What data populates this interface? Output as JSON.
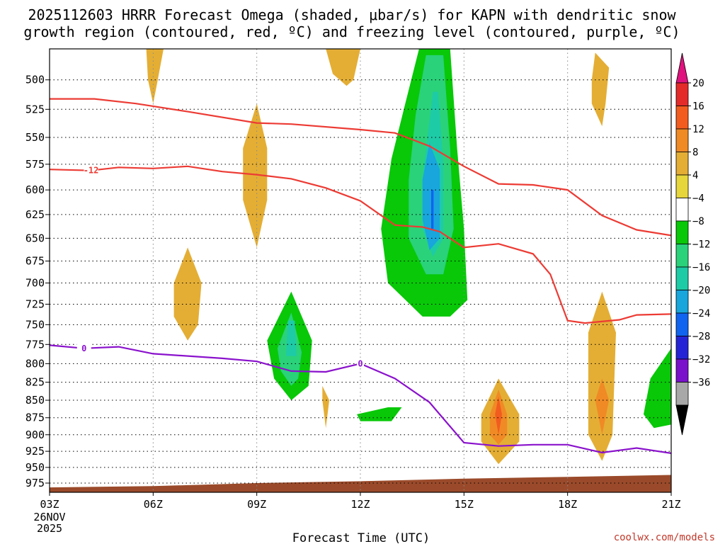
{
  "chart_data": {
    "type": "time-height cross section",
    "title_line1": "2025112603 HRRR Forecast Omega (shaded, μbar/s) for KAPN with dendritic snow",
    "title_line2": "growth region (contoured, red, ºC) and freezing level (contoured, purple, ºC)",
    "xlabel": "Forecast Time (UTC)",
    "x_ticks": [
      "03Z",
      "06Z",
      "09Z",
      "12Z",
      "15Z",
      "18Z",
      "21Z"
    ],
    "x_tick_hours": [
      3,
      6,
      9,
      12,
      15,
      18,
      21
    ],
    "x_start_extra": [
      "26NOV",
      "2025"
    ],
    "xlim": [
      3,
      21
    ],
    "y_levels": [
      500,
      525,
      550,
      575,
      600,
      625,
      650,
      675,
      700,
      725,
      750,
      775,
      800,
      825,
      850,
      875,
      900,
      925,
      950,
      975
    ],
    "ylim": [
      475,
      990
    ],
    "y_scale": "log-pressure (hPa)",
    "colorbar": {
      "labels": [
        "20",
        "16",
        "12",
        "8",
        "4",
        "−4",
        "−8",
        "−12",
        "−16",
        "−20",
        "−24",
        "−28",
        "−32",
        "−36"
      ],
      "boundaries": [
        20,
        16,
        12,
        8,
        4,
        -4,
        -8,
        -12,
        -16,
        -20,
        -24,
        -28,
        -32,
        -36
      ],
      "colors": [
        "#e52a2a",
        "#f25c1f",
        "#f08a25",
        "#e4ae35",
        "#e6d63c",
        "#ffffff",
        "#08c808",
        "#2ad27a",
        "#1ecba7",
        "#18a6dd",
        "#1064f0",
        "#2424d6",
        "#7a12cc",
        "#a8a8a8"
      ],
      "top_arrow_color": "#e0127e",
      "bottom_arrow_color": "#000000"
    },
    "dgz_contours": {
      "color": "#ec3b34",
      "series": [
        {
          "name": "-18",
          "label": "",
          "points": [
            [
              3.0,
              516
            ],
            [
              4.3,
              516
            ],
            [
              5.5,
              520
            ],
            [
              7.0,
              527
            ],
            [
              9.0,
              537
            ],
            [
              10.0,
              538
            ],
            [
              12.0,
              543
            ],
            [
              13.0,
              546
            ],
            [
              14.0,
              558
            ],
            [
              15.0,
              577
            ],
            [
              16.0,
              594
            ],
            [
              17.0,
              595
            ],
            [
              18.0,
              600
            ],
            [
              19.0,
              626
            ],
            [
              20.0,
              641
            ],
            [
              21.0,
              647
            ]
          ]
        },
        {
          "name": "-12",
          "label": "-12",
          "points": [
            [
              3.0,
              580
            ],
            [
              4.2,
              581
            ],
            [
              5.0,
              578
            ],
            [
              6.0,
              579
            ],
            [
              7.0,
              577
            ],
            [
              8.0,
              582
            ],
            [
              9.0,
              585
            ],
            [
              10.0,
              589
            ],
            [
              11.0,
              598
            ],
            [
              12.0,
              611
            ],
            [
              13.0,
              636
            ],
            [
              13.8,
              638
            ],
            [
              14.3,
              643
            ],
            [
              15.0,
              660
            ],
            [
              16.0,
              656
            ],
            [
              17.0,
              667
            ],
            [
              17.5,
              690
            ],
            [
              18.0,
              745
            ],
            [
              18.5,
              748
            ],
            [
              19.5,
              744
            ],
            [
              20.0,
              738
            ],
            [
              21.0,
              737
            ]
          ]
        }
      ]
    },
    "freezing_level": {
      "color": "#8a12cc",
      "label": "0",
      "points": [
        [
          3.0,
          776
        ],
        [
          4.0,
          780
        ],
        [
          5.0,
          778
        ],
        [
          6.0,
          787
        ],
        [
          8.0,
          793
        ],
        [
          9.0,
          797
        ],
        [
          10.0,
          810
        ],
        [
          11.0,
          811
        ],
        [
          12.0,
          800
        ],
        [
          13.0,
          820
        ],
        [
          14.0,
          853
        ],
        [
          15.0,
          912
        ],
        [
          16.0,
          917
        ],
        [
          17.0,
          915
        ],
        [
          18.0,
          915
        ],
        [
          19.0,
          927
        ],
        [
          20.0,
          920
        ],
        [
          21.0,
          928
        ]
      ]
    },
    "shaded_regions": [
      {
        "omega": -6,
        "points": [
          [
            14.0,
            475
          ],
          [
            15.0,
            475
          ],
          [
            15.5,
            540
          ],
          [
            15.5,
            680
          ],
          [
            15.0,
            775
          ],
          [
            14.5,
            820
          ],
          [
            14.0,
            860
          ],
          [
            13.0,
            900
          ],
          [
            12.0,
            950
          ],
          [
            10.8,
            950
          ],
          [
            10.8,
            930
          ],
          [
            12.0,
            900
          ],
          [
            11.5,
            860
          ],
          [
            11.5,
            800
          ],
          [
            12.0,
            750
          ],
          [
            12.8,
            705
          ],
          [
            12.2,
            650
          ],
          [
            12.5,
            580
          ],
          [
            13.2,
            510
          ]
        ]
      },
      {
        "omega": -10,
        "points": [
          [
            13.7,
            475
          ],
          [
            14.6,
            475
          ],
          [
            14.8,
            560
          ],
          [
            15.0,
            640
          ],
          [
            15.1,
            720
          ],
          [
            14.6,
            740
          ],
          [
            13.8,
            740
          ],
          [
            12.8,
            700
          ],
          [
            12.6,
            640
          ],
          [
            12.9,
            570
          ],
          [
            13.3,
            520
          ]
        ]
      },
      {
        "omega": -14,
        "points": [
          [
            13.9,
            480
          ],
          [
            14.4,
            480
          ],
          [
            14.6,
            560
          ],
          [
            14.7,
            640
          ],
          [
            14.4,
            690
          ],
          [
            13.9,
            690
          ],
          [
            13.4,
            650
          ],
          [
            13.4,
            590
          ],
          [
            13.6,
            530
          ]
        ]
      },
      {
        "omega": -18,
        "points": [
          [
            14.1,
            510
          ],
          [
            14.25,
            510
          ],
          [
            14.4,
            575
          ],
          [
            14.4,
            650
          ],
          [
            14.1,
            670
          ],
          [
            13.8,
            640
          ],
          [
            13.8,
            590
          ]
        ]
      },
      {
        "omega": -22,
        "points": [
          [
            14.0,
            555
          ],
          [
            14.3,
            580
          ],
          [
            14.3,
            650
          ],
          [
            14.0,
            663
          ],
          [
            13.8,
            630
          ],
          [
            13.8,
            590
          ]
        ]
      },
      {
        "omega": -26,
        "points": [
          [
            14.05,
            600
          ],
          [
            14.12,
            600
          ],
          [
            14.12,
            640
          ],
          [
            14.05,
            640
          ]
        ]
      },
      {
        "omega": -6,
        "points": [
          [
            8.9,
            760
          ],
          [
            10.0,
            670
          ],
          [
            11.2,
            760
          ],
          [
            10.7,
            870
          ],
          [
            10.0,
            890
          ],
          [
            9.2,
            845
          ],
          [
            9.1,
            790
          ]
        ]
      },
      {
        "omega": -10,
        "points": [
          [
            9.3,
            770
          ],
          [
            10.0,
            710
          ],
          [
            10.6,
            770
          ],
          [
            10.5,
            830
          ],
          [
            10.0,
            850
          ],
          [
            9.5,
            820
          ]
        ]
      },
      {
        "omega": -14,
        "points": [
          [
            9.6,
            780
          ],
          [
            10.0,
            735
          ],
          [
            10.3,
            785
          ],
          [
            10.2,
            820
          ],
          [
            10.0,
            830
          ],
          [
            9.7,
            810
          ]
        ]
      },
      {
        "omega": -18,
        "points": [
          [
            9.9,
            745
          ],
          [
            10.1,
            745
          ],
          [
            10.15,
            790
          ],
          [
            9.85,
            790
          ]
        ]
      },
      {
        "omega": -10,
        "points": [
          [
            11.9,
            870
          ],
          [
            12.8,
            860
          ],
          [
            13.2,
            860
          ],
          [
            12.9,
            880
          ],
          [
            12.0,
            880
          ]
        ]
      },
      {
        "omega": -6,
        "points": [
          [
            16.8,
            720
          ],
          [
            17.5,
            750
          ],
          [
            18.0,
            800
          ],
          [
            18.0,
            830
          ],
          [
            17.4,
            870
          ],
          [
            16.9,
            860
          ],
          [
            17.2,
            800
          ],
          [
            16.9,
            755
          ]
        ]
      },
      {
        "omega": -6,
        "points": [
          [
            20.0,
            735
          ],
          [
            20.6,
            745
          ],
          [
            21.0,
            750
          ],
          [
            21.0,
            905
          ],
          [
            20.6,
            920
          ],
          [
            20.0,
            930
          ],
          [
            19.8,
            880
          ],
          [
            20.0,
            800
          ]
        ]
      },
      {
        "omega": -10,
        "points": [
          [
            21.0,
            780
          ],
          [
            20.4,
            820
          ],
          [
            20.2,
            870
          ],
          [
            20.5,
            890
          ],
          [
            21.0,
            885
          ]
        ]
      },
      {
        "omega": 6,
        "points": [
          [
            16.0,
            820
          ],
          [
            16.6,
            870
          ],
          [
            16.6,
            910
          ],
          [
            16.0,
            945
          ],
          [
            15.5,
            910
          ],
          [
            15.5,
            870
          ]
        ]
      },
      {
        "omega": 10,
        "points": [
          [
            16.0,
            835
          ],
          [
            16.25,
            870
          ],
          [
            16.25,
            900
          ],
          [
            16.0,
            915
          ],
          [
            15.75,
            900
          ],
          [
            15.75,
            870
          ]
        ]
      },
      {
        "omega": 14,
        "points": [
          [
            16.0,
            845
          ],
          [
            16.1,
            870
          ],
          [
            16.0,
            900
          ],
          [
            15.9,
            870
          ]
        ]
      },
      {
        "omega": 6,
        "points": [
          [
            19.0,
            710
          ],
          [
            19.4,
            760
          ],
          [
            19.3,
            900
          ],
          [
            19.0,
            940
          ],
          [
            18.6,
            900
          ],
          [
            18.6,
            760
          ]
        ]
      },
      {
        "omega": 10,
        "points": [
          [
            19.0,
            820
          ],
          [
            19.2,
            850
          ],
          [
            19.0,
            900
          ],
          [
            18.8,
            850
          ]
        ]
      },
      {
        "omega": 6,
        "points": [
          [
            9.0,
            520
          ],
          [
            9.3,
            560
          ],
          [
            9.3,
            610
          ],
          [
            9.0,
            660
          ],
          [
            8.6,
            610
          ],
          [
            8.6,
            560
          ]
        ]
      },
      {
        "omega": 6,
        "points": [
          [
            7.0,
            660
          ],
          [
            7.4,
            700
          ],
          [
            7.3,
            750
          ],
          [
            7.0,
            770
          ],
          [
            6.6,
            740
          ],
          [
            6.6,
            700
          ]
        ]
      },
      {
        "omega": 6,
        "points": [
          [
            5.8,
            475
          ],
          [
            6.3,
            475
          ],
          [
            6.1,
            505
          ],
          [
            6.0,
            520
          ],
          [
            5.85,
            500
          ]
        ]
      },
      {
        "omega": 6,
        "points": [
          [
            11.0,
            475
          ],
          [
            12.0,
            475
          ],
          [
            11.8,
            500
          ],
          [
            11.6,
            505
          ],
          [
            11.2,
            495
          ]
        ]
      },
      {
        "omega": 6,
        "points": [
          [
            18.8,
            478
          ],
          [
            19.2,
            490
          ],
          [
            19.1,
            520
          ],
          [
            19.0,
            540
          ],
          [
            18.7,
            520
          ],
          [
            18.7,
            500
          ]
        ]
      },
      {
        "omega": 6,
        "points": [
          [
            10.9,
            830
          ],
          [
            11.1,
            850
          ],
          [
            11.0,
            890
          ],
          [
            10.9,
            850
          ]
        ]
      },
      {
        "omega": -6,
        "points": [
          [
            9.8,
            475
          ],
          [
            10.2,
            475
          ],
          [
            10.2,
            530
          ],
          [
            10.1,
            545
          ],
          [
            10.0,
            530
          ]
        ]
      }
    ],
    "terrain": {
      "color": "#9a4a2a",
      "points": [
        [
          3.0,
          982
        ],
        [
          6.0,
          980
        ],
        [
          9.0,
          975
        ],
        [
          12.0,
          972
        ],
        [
          15.0,
          968
        ],
        [
          18.0,
          965
        ],
        [
          21.0,
          962
        ]
      ]
    }
  },
  "credit": "coolwx.com/models"
}
